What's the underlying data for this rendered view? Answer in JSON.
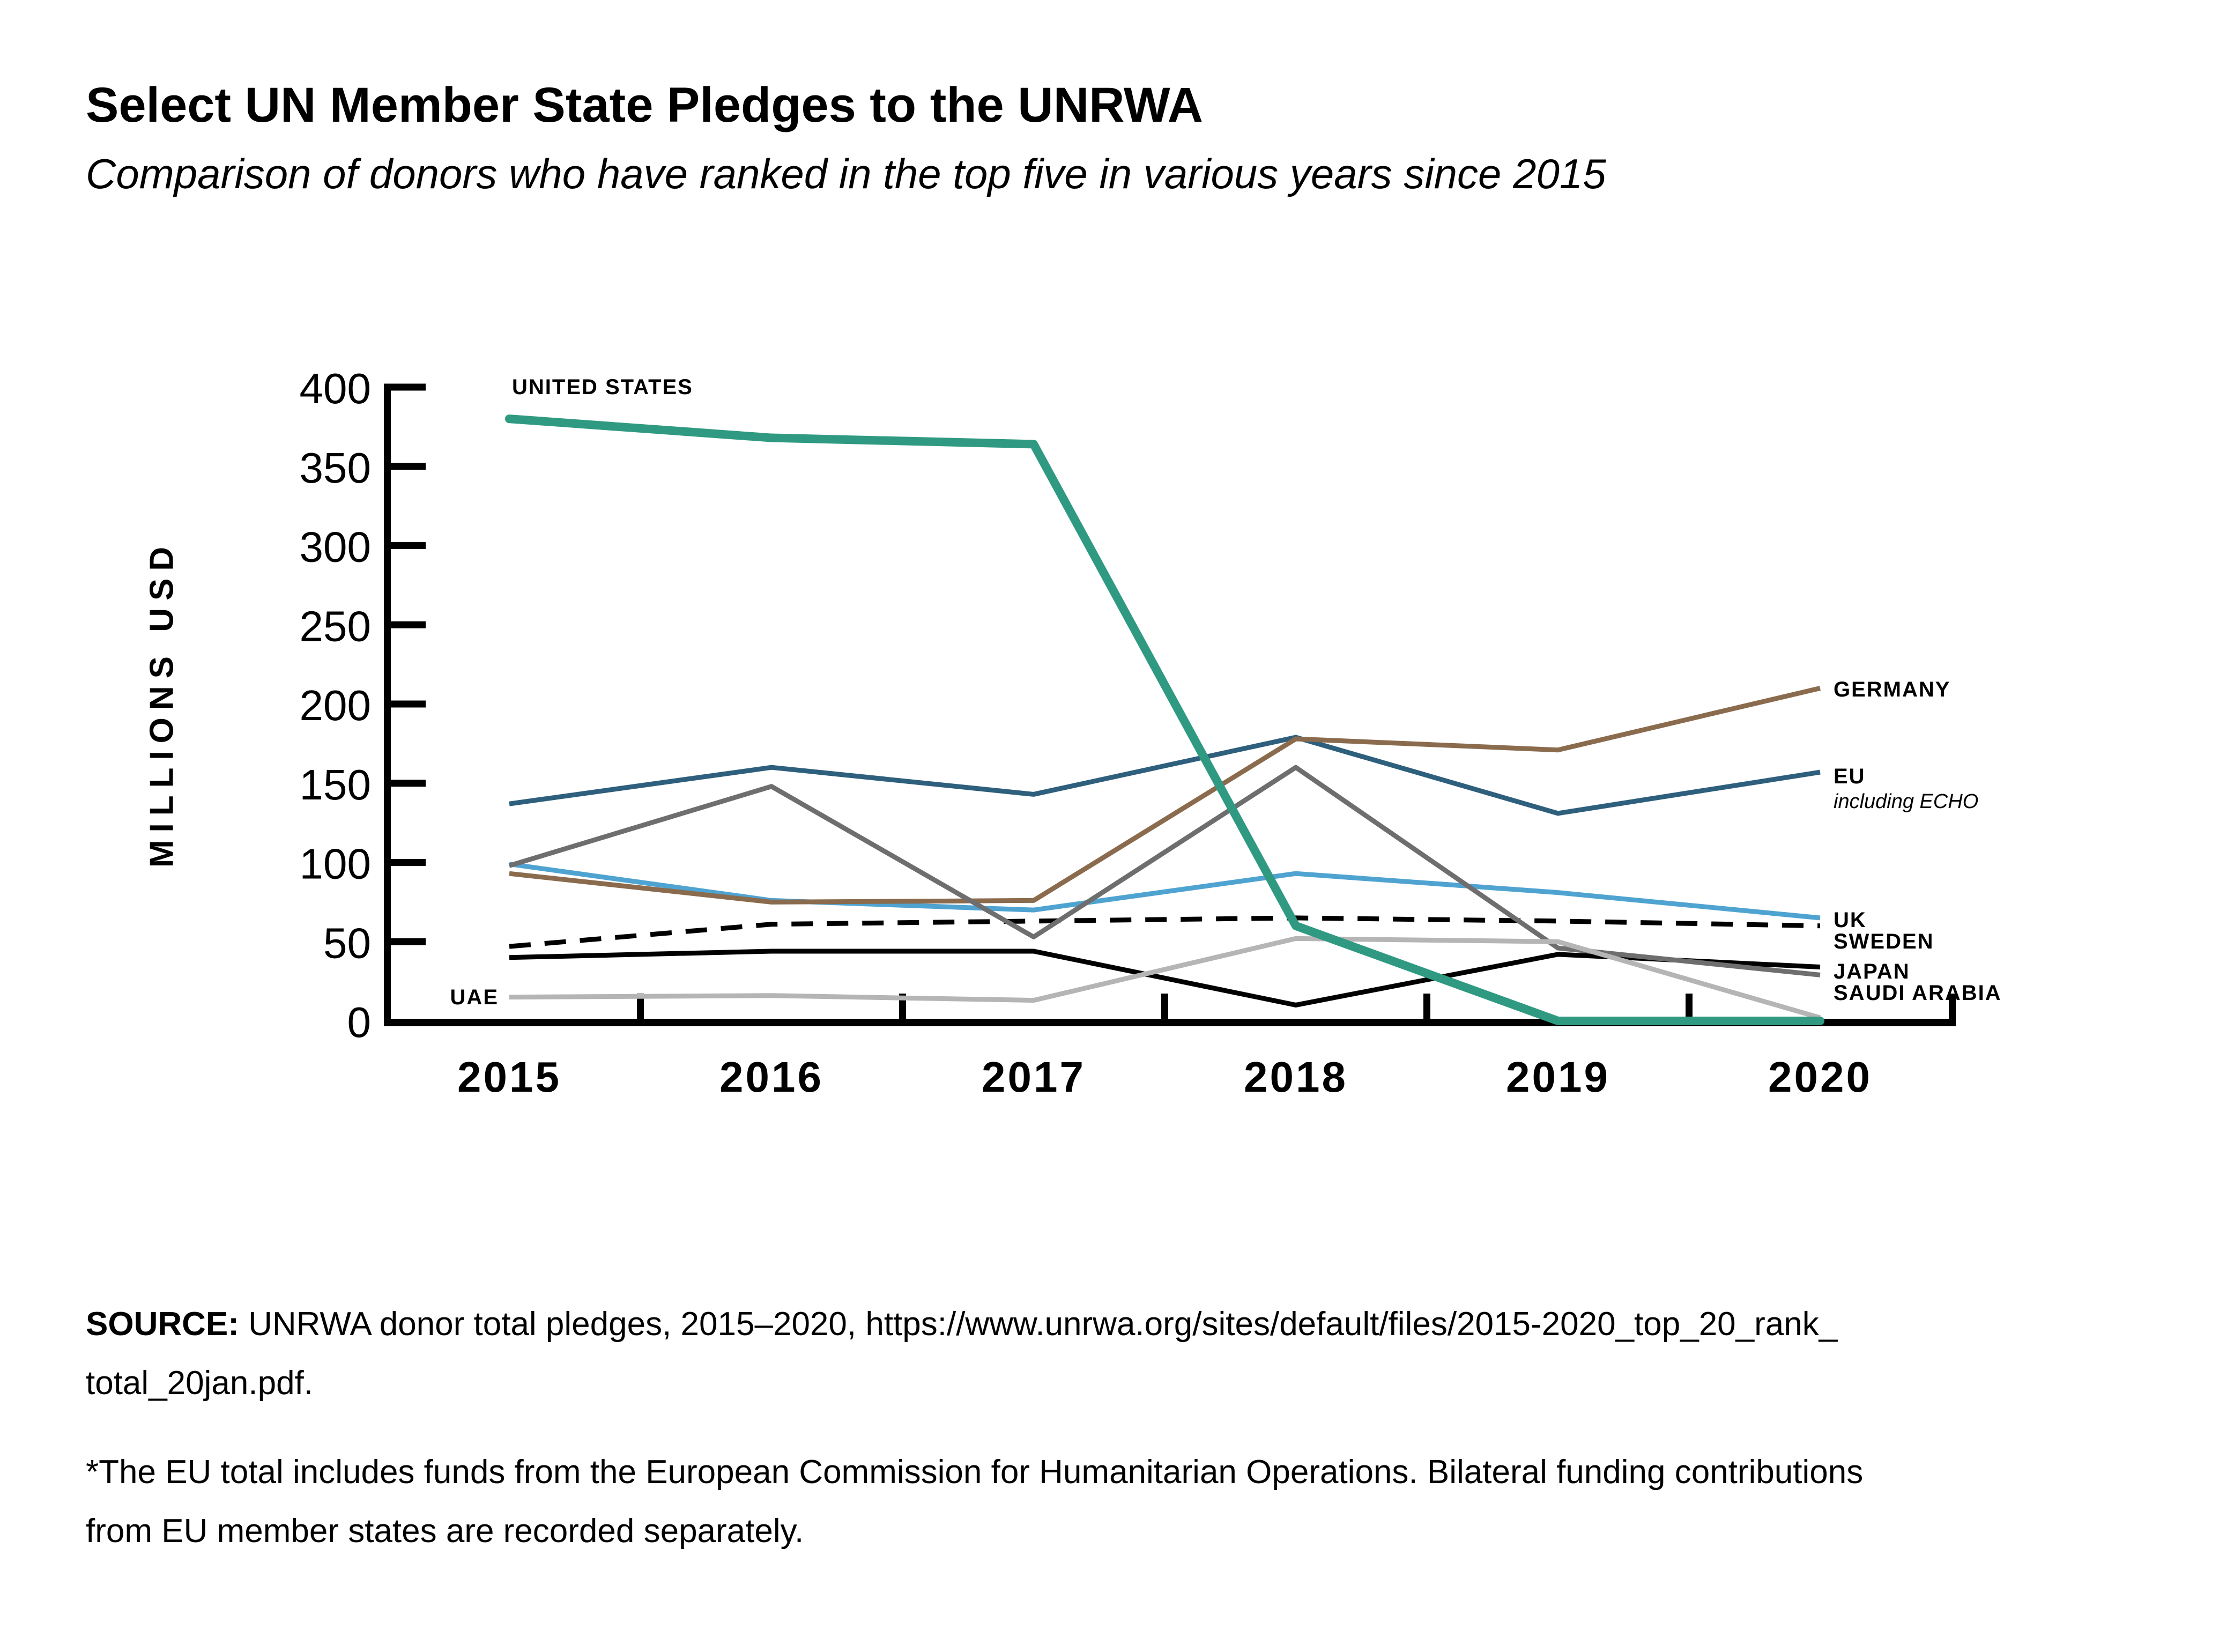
{
  "header": {
    "title": "Select UN Member State Pledges to the UNRWA",
    "subtitle": "Comparison of donors who have ranked in the top five in various years since 2015"
  },
  "labels": {
    "us": "UNITED STATES",
    "uae": "UAE",
    "germany": "GERMANY",
    "eu": "EU",
    "eu_note": "including ECHO",
    "uk": "UK",
    "sweden": "SWEDEN",
    "japan": "JAPAN",
    "saudi": "SAUDI ARABIA"
  },
  "chart_data": {
    "type": "line",
    "x": [
      "2015",
      "2016",
      "2017",
      "2018",
      "2019",
      "2020"
    ],
    "ylabel": "MILLIONS USD",
    "ylim": [
      0,
      400
    ],
    "y_ticks": [
      400,
      350,
      300,
      250,
      200,
      150,
      100,
      50,
      0
    ],
    "grid": false,
    "legend_position": "line-end-labels-right",
    "units": "millions USD",
    "series": [
      {
        "name": "UK",
        "values": [
          99,
          76,
          70,
          93,
          81,
          65
        ],
        "color": "#4FA3D1",
        "width": 9
      },
      {
        "name": "EU",
        "values": [
          137,
          160,
          143,
          179,
          131,
          157
        ],
        "color": "#2E5F7C",
        "width": 9
      },
      {
        "name": "GERMANY",
        "values": [
          93,
          75,
          76,
          178,
          171,
          210
        ],
        "color": "#8A6B4D",
        "width": 9
      },
      {
        "name": "SWEDEN",
        "values": [
          47,
          61,
          63,
          65,
          63,
          60
        ],
        "color": "#000000",
        "width": 9,
        "dash": [
          40,
          26
        ]
      },
      {
        "name": "JAPAN",
        "values": [
          40,
          44,
          44,
          10,
          42,
          34
        ],
        "color": "#000000",
        "width": 9
      },
      {
        "name": "SAUDI ARABIA",
        "values": [
          98,
          148,
          53,
          160,
          46,
          29
        ],
        "color": "#6E6E6E",
        "width": 9
      },
      {
        "name": "UAE",
        "values": [
          15,
          16,
          13,
          52,
          50,
          2
        ],
        "color": "#B5B5B5",
        "width": 9
      },
      {
        "name": "UNITED STATES",
        "values": [
          380,
          368,
          364,
          60,
          0,
          0
        ],
        "color": "#2F9A81",
        "width": 16,
        "cap": "round"
      }
    ]
  },
  "footer": {
    "source_label": "SOURCE:",
    "source_line1": " UNRWA donor total pledges, 2015–2020, https://www.unrwa.org/sites/default/files/2015-2020_top_20_rank_",
    "source_line2": "total_20jan.pdf.",
    "footnote_line1": "*The EU total includes funds from the European Commission for Humanitarian Operations. Bilateral funding contributions",
    "footnote_line2": "from EU member states are recorded separately."
  }
}
